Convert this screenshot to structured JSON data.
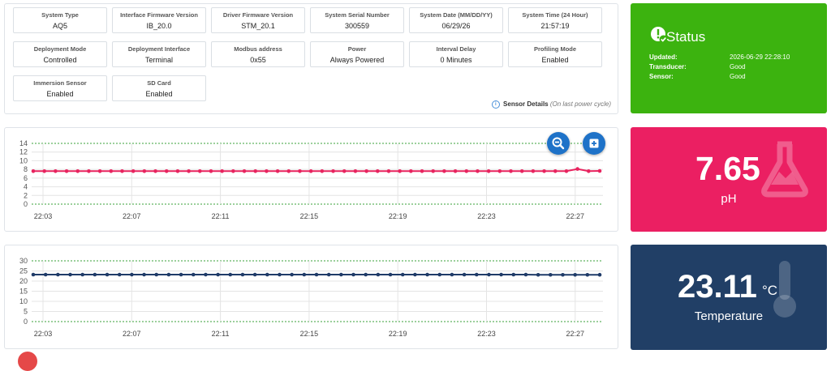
{
  "system": {
    "fields": [
      {
        "label": "System Type",
        "value": "AQ5"
      },
      {
        "label": "Interface Firmware Version",
        "value": "IB_20.0"
      },
      {
        "label": "Driver Firmware Version",
        "value": "STM_20.1"
      },
      {
        "label": "System Serial Number",
        "value": "300559"
      },
      {
        "label": "System Date (MM/DD/YY)",
        "value": "06/29/26"
      },
      {
        "label": "System Time (24 Hour)",
        "value": "21:57:19"
      },
      {
        "label": "Deployment Mode",
        "value": "Controlled"
      },
      {
        "label": "Deployment Interface",
        "value": "Terminal"
      },
      {
        "label": "Modbus address",
        "value": "0x55"
      },
      {
        "label": "Power",
        "value": "Always Powered"
      },
      {
        "label": "Interval Delay",
        "value": "0 Minutes"
      },
      {
        "label": "Profiling Mode",
        "value": "Enabled"
      },
      {
        "label": "Immersion Sensor",
        "value": "Enabled"
      },
      {
        "label": "SD Card",
        "value": "Enabled"
      }
    ],
    "details_label": "Sensor Details",
    "details_note": "(On last power cycle)"
  },
  "status": {
    "title": "Status",
    "icon": "exclamation-check-icon",
    "rows": [
      {
        "label": "Updated:",
        "value": "2026-06-29 22:28:10"
      },
      {
        "label": "Transducer:",
        "value": "Good"
      },
      {
        "label": "Sensor:",
        "value": "Good"
      }
    ],
    "color": "#3cb30f"
  },
  "ph": {
    "value": "7.65",
    "label": "pH",
    "icon": "flask-icon",
    "color": "#eb1f62"
  },
  "temperature": {
    "value": "23.11",
    "unit": "°C",
    "label": "Temperature",
    "icon": "thermometer-icon",
    "color": "#213f66"
  },
  "zoom_icon": "zoom-out-icon",
  "add_icon": "add-icon",
  "chart_data": [
    {
      "type": "line",
      "ylim": [
        0,
        14
      ],
      "yticks": [
        "0",
        "2",
        "4",
        "6",
        "8",
        "10",
        "12",
        "14"
      ],
      "xticks": [
        "22:03",
        "22:07",
        "22:11",
        "22:15",
        "22:19",
        "22:23",
        "22:27"
      ],
      "series": [
        {
          "color": "#e8245f",
          "values": [
            7.6,
            7.6,
            7.6,
            7.6,
            7.6,
            7.6,
            7.6,
            7.6,
            7.6,
            7.6,
            7.6,
            7.6,
            7.6,
            7.6,
            7.6,
            7.6,
            7.6,
            7.6,
            7.6,
            7.6,
            7.6,
            7.6,
            7.6,
            7.6,
            7.6,
            7.6,
            7.6,
            7.6,
            7.6,
            7.6,
            7.6,
            7.6,
            7.6,
            7.6,
            7.6,
            7.6,
            7.6,
            7.6,
            7.6,
            7.6,
            7.6,
            7.6,
            7.6,
            7.6,
            7.6,
            7.6,
            7.6,
            7.6,
            7.6,
            8.1,
            7.6,
            7.65
          ]
        }
      ]
    },
    {
      "type": "line",
      "ylim": [
        0,
        30
      ],
      "yticks": [
        "0",
        "5",
        "10",
        "15",
        "20",
        "25",
        "30"
      ],
      "xticks": [
        "22:03",
        "22:07",
        "22:11",
        "22:15",
        "22:19",
        "22:23",
        "22:27"
      ],
      "series": [
        {
          "color": "#1f3b68",
          "values": [
            23.2,
            23.2,
            23.2,
            23.2,
            23.2,
            23.2,
            23.2,
            23.2,
            23.2,
            23.2,
            23.2,
            23.2,
            23.2,
            23.2,
            23.2,
            23.2,
            23.2,
            23.2,
            23.2,
            23.2,
            23.2,
            23.2,
            23.2,
            23.2,
            23.2,
            23.2,
            23.2,
            23.2,
            23.2,
            23.2,
            23.2,
            23.2,
            23.2,
            23.2,
            23.2,
            23.2,
            23.2,
            23.2,
            23.2,
            23.2,
            23.2,
            23.1,
            23.1,
            23.1,
            23.1,
            23.1,
            23.11
          ]
        }
      ]
    }
  ]
}
